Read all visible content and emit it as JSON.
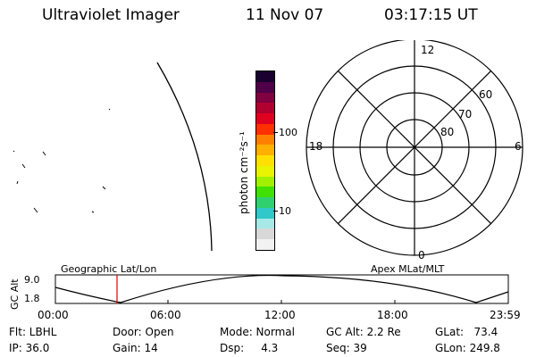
{
  "header": {
    "title": "Ultraviolet Imager",
    "date": "11 Nov 07",
    "time": "03:17:15 UT"
  },
  "colorbar": {
    "label": "photon cm⁻²s⁻¹",
    "ticks": [
      "100",
      "10"
    ],
    "colors": [
      "#f2f2f2",
      "#d8d8d8",
      "#a8e8e8",
      "#30c8c8",
      "#30d070",
      "#40e000",
      "#a0f000",
      "#e8f400",
      "#ffe000",
      "#ffb000",
      "#ff8000",
      "#ff3000",
      "#e00020",
      "#b00030",
      "#800040",
      "#500048",
      "#1a0030"
    ]
  },
  "polar": {
    "mlt_labels": {
      "top": "12",
      "left": "18",
      "right": "6",
      "bottom": "0"
    },
    "lat_labels": [
      "60",
      "70",
      "80"
    ]
  },
  "timeline": {
    "left_label": "Geographic Lat/Lon",
    "right_label": "Apex MLat/MLT",
    "y_title": "GC Alt",
    "y_ticks": [
      "9.0",
      "1.8"
    ],
    "x_ticks": [
      "00:00",
      "06:00",
      "12:00",
      "18:00",
      "23:59"
    ],
    "marker_time": "03:17:15"
  },
  "info": {
    "filter": "Flt: LBHL",
    "ip": "IP: 36.0",
    "door": "Door: Open",
    "gain": "Gain: 14",
    "mode": "Mode: Normal",
    "dsp": "Dsp:     4.3",
    "gc_alt": "GC Alt: 2.2 Re",
    "seq": "Seq: 39",
    "glat": "GLat:   73.4",
    "glon": "GLon: 249.8"
  }
}
